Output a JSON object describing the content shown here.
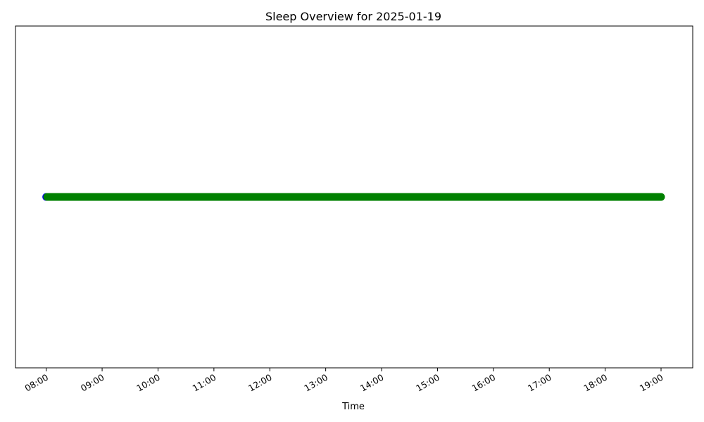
{
  "chart_data": {
    "type": "scatter",
    "title": "Sleep Overview for 2025-01-19",
    "xlabel": "Time",
    "ylabel": "",
    "x_ticks": [
      "08:00",
      "09:00",
      "10:00",
      "11:00",
      "12:00",
      "13:00",
      "14:00",
      "15:00",
      "16:00",
      "17:00",
      "18:00",
      "19:00"
    ],
    "xlim": [
      "07:27",
      "19:34"
    ],
    "y_ticks_visible": false,
    "grid": false,
    "legend": "none",
    "series": [
      {
        "color": "#0000ff",
        "points": [
          {
            "x": "08:00",
            "y": 0
          }
        ]
      },
      {
        "color": "#008000",
        "segment": {
          "start": "08:01",
          "end": "19:00",
          "interval_minutes": 1,
          "y": 0
        }
      }
    ]
  }
}
